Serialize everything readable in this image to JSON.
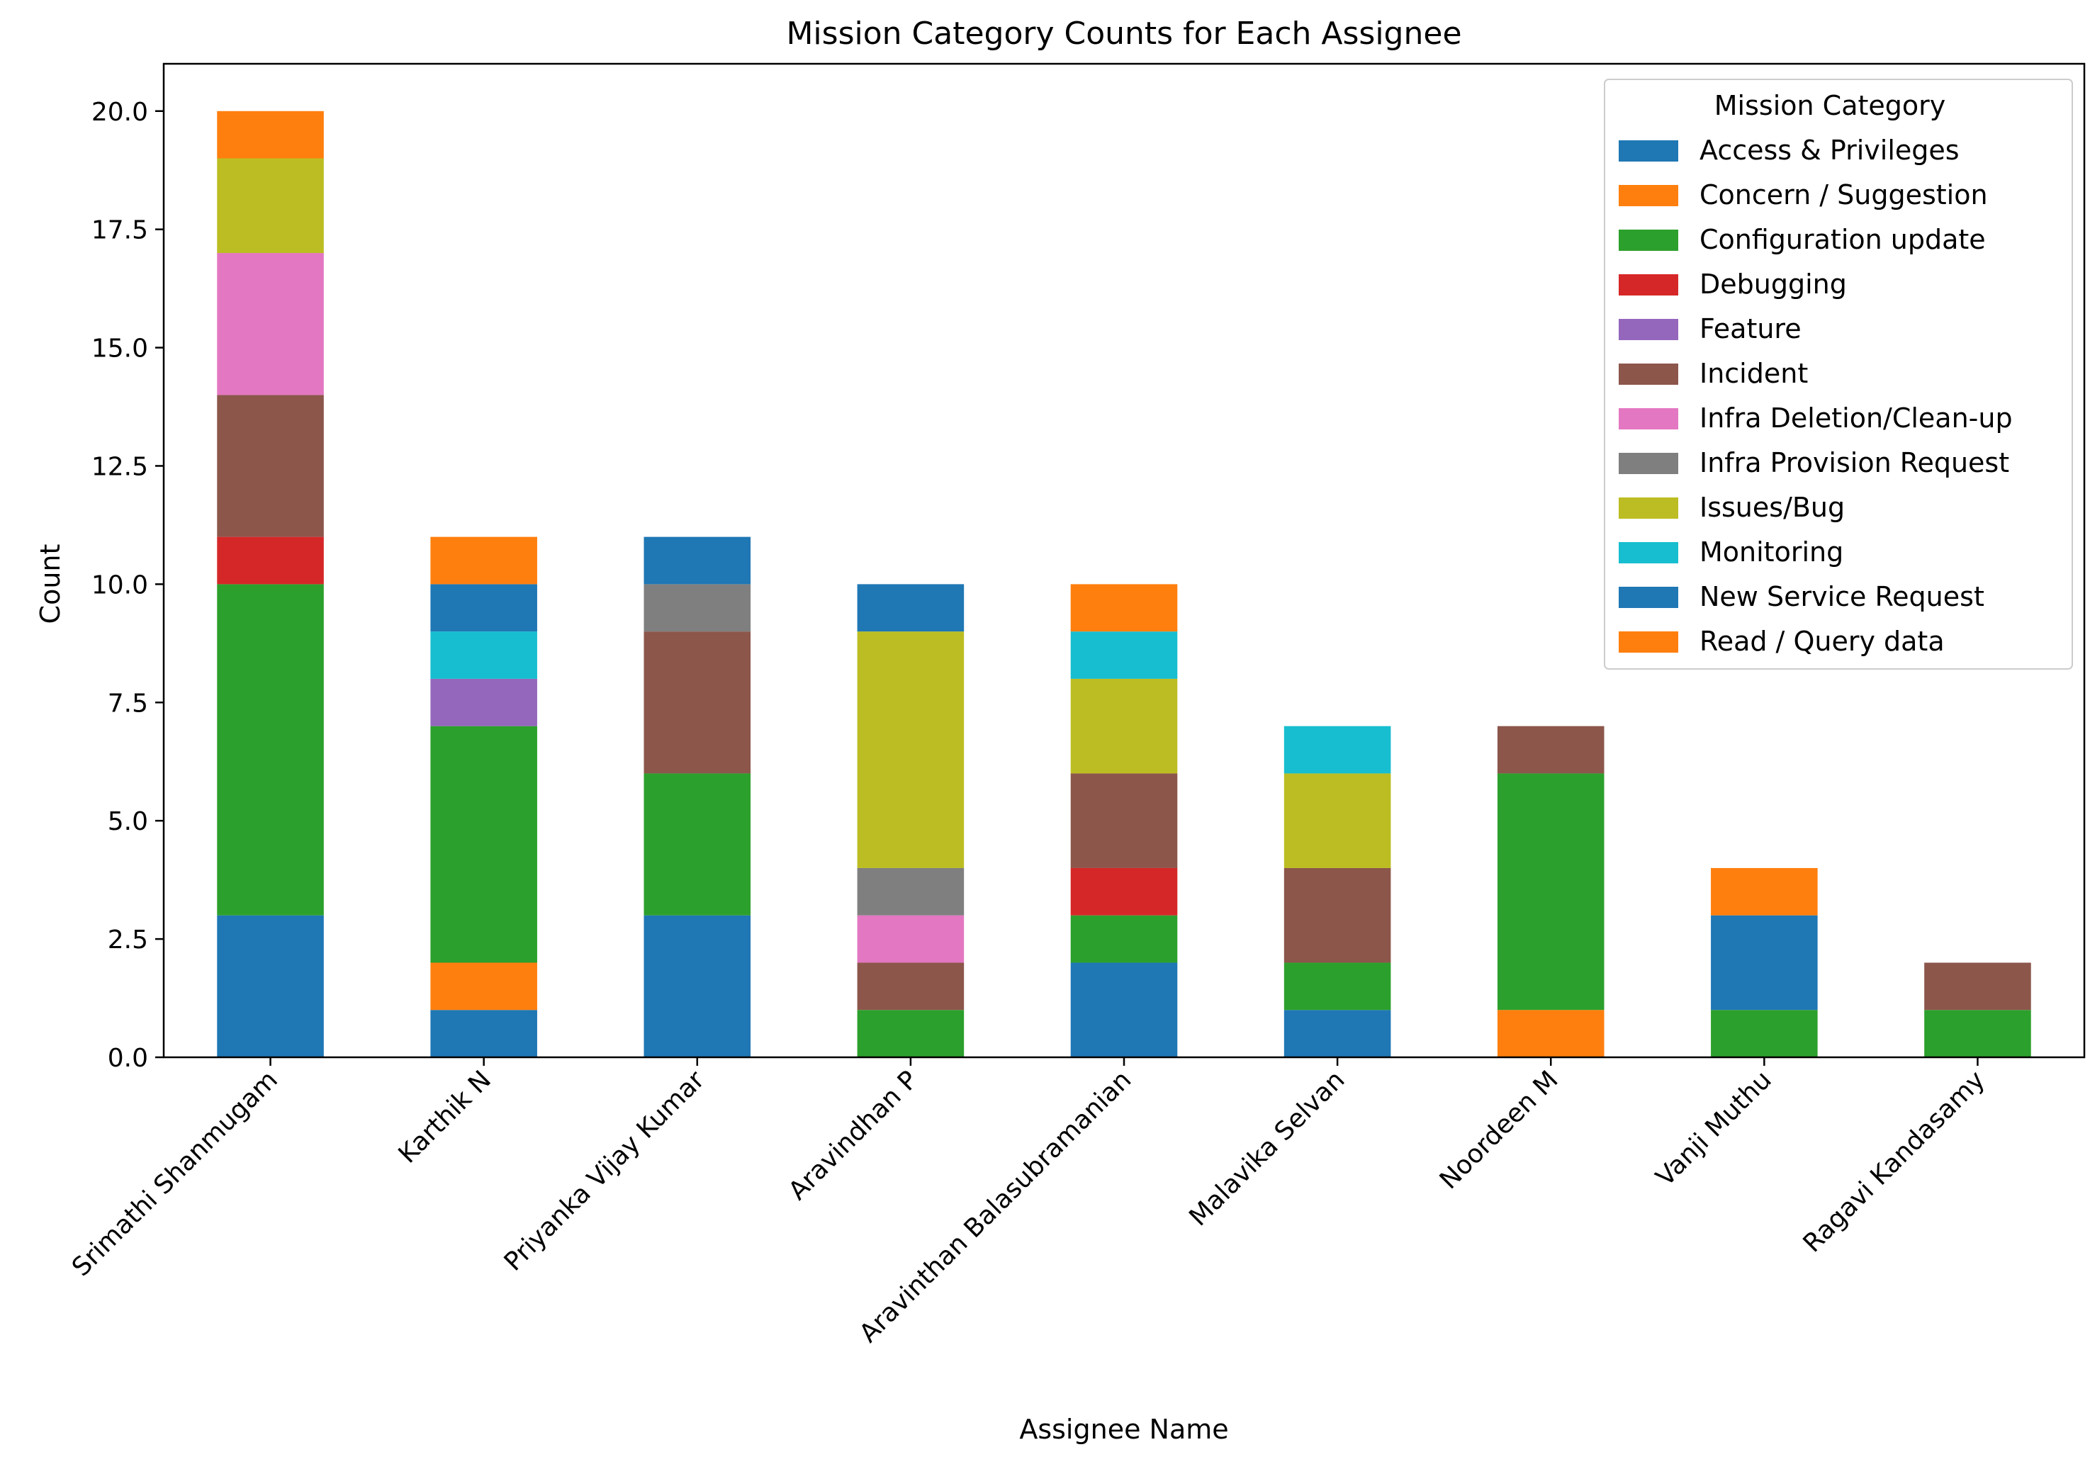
{
  "chart_data": {
    "type": "bar",
    "stacked": true,
    "title": "Mission Category Counts for Each Assignee",
    "xlabel": "Assignee Name",
    "ylabel": "Count",
    "ylim": [
      0,
      21
    ],
    "yticks": [
      "0.0",
      "2.5",
      "5.0",
      "7.5",
      "10.0",
      "12.5",
      "15.0",
      "17.5",
      "20.0"
    ],
    "grid": false,
    "legend": {
      "title": "Mission Category",
      "placement": "top-right"
    },
    "categories": [
      "Srimathi Shanmugam",
      "Karthik N",
      "Priyanka Vijay Kumar",
      "Aravindhan P",
      "Aravinthan Balasubramanian",
      "Malavika Selvan",
      "Noordeen M",
      "Vanji Muthu",
      "Ragavi Kandasamy"
    ],
    "series": [
      {
        "name": "Access & Privileges",
        "color": "#1f77b4",
        "values": [
          3,
          1,
          3,
          0,
          2,
          1,
          0,
          0,
          0
        ]
      },
      {
        "name": "Concern / Suggestion",
        "color": "#ff7f0e",
        "values": [
          0,
          1,
          0,
          0,
          0,
          0,
          1,
          0,
          0
        ]
      },
      {
        "name": "Configuration update",
        "color": "#2ca02c",
        "values": [
          7,
          5,
          3,
          1,
          1,
          1,
          5,
          1,
          1
        ]
      },
      {
        "name": "Debugging",
        "color": "#d62728",
        "values": [
          1,
          0,
          0,
          0,
          1,
          0,
          0,
          0,
          0
        ]
      },
      {
        "name": "Feature",
        "color": "#9467bd",
        "values": [
          0,
          1,
          0,
          0,
          0,
          0,
          0,
          0,
          0
        ]
      },
      {
        "name": "Incident",
        "color": "#8c564b",
        "values": [
          3,
          0,
          3,
          1,
          2,
          2,
          1,
          0,
          1
        ]
      },
      {
        "name": "Infra Deletion/Clean-up",
        "color": "#e377c2",
        "values": [
          3,
          0,
          0,
          1,
          0,
          0,
          0,
          0,
          0
        ]
      },
      {
        "name": "Infra Provision Request",
        "color": "#7f7f7f",
        "values": [
          0,
          0,
          1,
          1,
          0,
          0,
          0,
          0,
          0
        ]
      },
      {
        "name": "Issues/Bug",
        "color": "#bcbd22",
        "values": [
          2,
          0,
          0,
          5,
          2,
          2,
          0,
          0,
          0
        ]
      },
      {
        "name": "Monitoring",
        "color": "#17becf",
        "values": [
          0,
          1,
          0,
          0,
          1,
          1,
          0,
          0,
          0
        ]
      },
      {
        "name": "New Service Request",
        "color": "#1f77b4",
        "values": [
          0,
          1,
          1,
          1,
          0,
          0,
          0,
          2,
          0
        ]
      },
      {
        "name": "Read / Query data",
        "color": "#ff7f0e",
        "values": [
          1,
          1,
          0,
          0,
          1,
          0,
          0,
          1,
          0
        ]
      }
    ]
  }
}
